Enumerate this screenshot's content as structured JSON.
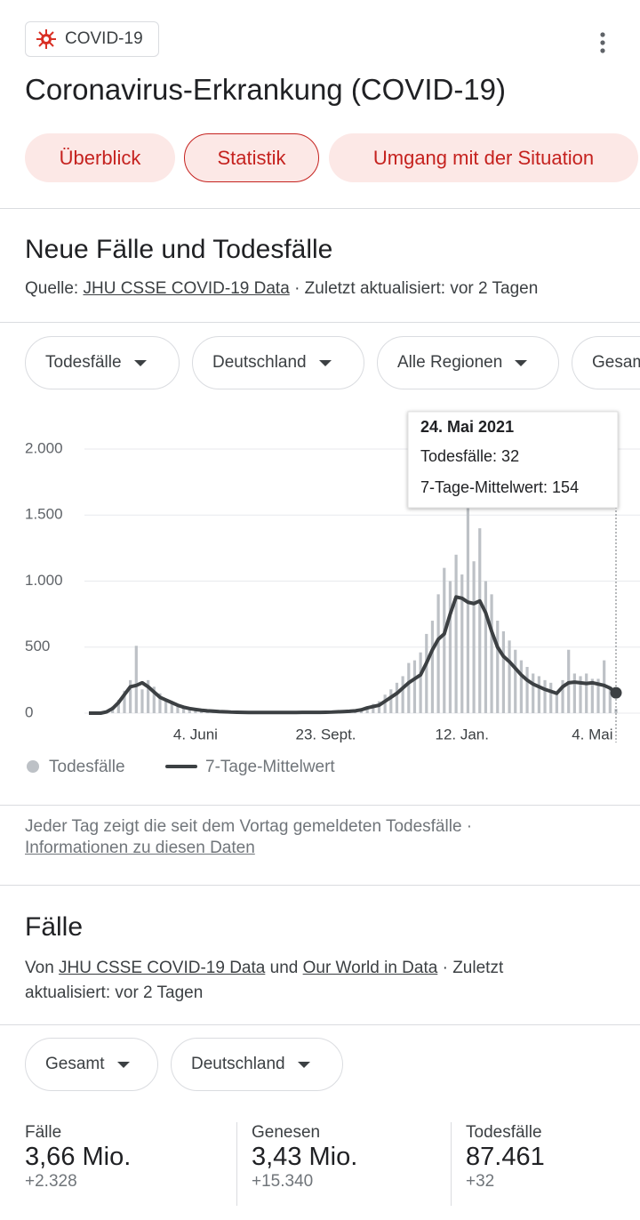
{
  "header": {
    "chip": "COVID-19",
    "title": "Coronavirus-Erkrankung (COVID-19)",
    "tabs": [
      "Überblick",
      "Statistik",
      "Umgang mit der Situation"
    ]
  },
  "section": {
    "title": "Neue Fälle und Todesfälle",
    "source_prefix": "Quelle:",
    "source_link": "JHU CSSE COVID-19 Data",
    "source_suffix": "· Zuletzt aktualisiert: vor 2 Tagen",
    "filters": [
      "Todesfälle",
      "Deutschland",
      "Alle Regionen",
      "Gesamt"
    ]
  },
  "chart_data": {
    "type": "bar",
    "categories": [
      null,
      null,
      null,
      null,
      null,
      null,
      null,
      null,
      null,
      null,
      null,
      null,
      null,
      null,
      null,
      null,
      null,
      null,
      "4. Juni",
      null,
      null,
      null,
      null,
      null,
      null,
      null,
      null,
      null,
      null,
      null,
      null,
      null,
      null,
      null,
      null,
      null,
      null,
      null,
      null,
      null,
      "23. Sept.",
      null,
      null,
      null,
      null,
      null,
      null,
      null,
      null,
      null,
      null,
      null,
      null,
      null,
      null,
      null,
      null,
      null,
      null,
      null,
      null,
      null,
      null,
      "12. Jan.",
      null,
      null,
      null,
      null,
      null,
      null,
      null,
      null,
      null,
      null,
      null,
      null,
      null,
      null,
      null,
      null,
      null,
      null,
      null,
      null,
      null,
      "4. Mai",
      null,
      null,
      null,
      null
    ],
    "series": [
      {
        "name": "Todesfälle",
        "type": "bar",
        "color": "#bdc1c6",
        "values": [
          0,
          0,
          2,
          20,
          50,
          100,
          170,
          250,
          510,
          180,
          250,
          200,
          150,
          100,
          80,
          60,
          40,
          35,
          25,
          20,
          15,
          12,
          10,
          8,
          6,
          5,
          5,
          6,
          5,
          4,
          5,
          6,
          4,
          5,
          6,
          5,
          6,
          8,
          5,
          7,
          8,
          10,
          12,
          14,
          15,
          20,
          30,
          40,
          70,
          90,
          140,
          180,
          230,
          280,
          380,
          400,
          460,
          600,
          700,
          900,
          1100,
          1000,
          1200,
          1050,
          1600,
          1150,
          1400,
          1000,
          900,
          700,
          620,
          550,
          480,
          400,
          350,
          300,
          280,
          250,
          230,
          150,
          250,
          480,
          300,
          280,
          300,
          260,
          260,
          400,
          200,
          32
        ]
      },
      {
        "name": "7-Tage-Mittelwert",
        "type": "line",
        "color": "#3c4043",
        "values": [
          0,
          0,
          0,
          10,
          35,
          80,
          140,
          200,
          210,
          230,
          200,
          160,
          120,
          100,
          80,
          60,
          45,
          35,
          28,
          22,
          18,
          15,
          12,
          10,
          8,
          7,
          6,
          5,
          5,
          5,
          5,
          5,
          5,
          5,
          5,
          5,
          6,
          6,
          6,
          6,
          7,
          8,
          10,
          12,
          14,
          18,
          25,
          40,
          50,
          60,
          90,
          120,
          150,
          190,
          230,
          260,
          290,
          380,
          480,
          560,
          600,
          750,
          880,
          870,
          840,
          830,
          850,
          760,
          620,
          500,
          430,
          390,
          340,
          290,
          250,
          220,
          200,
          180,
          165,
          150,
          200,
          230,
          235,
          230,
          225,
          230,
          220,
          210,
          190,
          154
        ]
      }
    ],
    "ylim": [
      0,
      2000
    ],
    "yticks": [
      0,
      500,
      {
        "value": 1000,
        "label": "1.000"
      },
      {
        "value": 1500,
        "label": "1.500"
      },
      {
        "value": 2000,
        "label": "2.000"
      }
    ],
    "grid": true,
    "tooltip": {
      "date": "24. Mai 2021",
      "lines": [
        "Todesfälle: 32",
        "7-Tage-Mittelwert: 154"
      ]
    }
  },
  "note": {
    "text": "Jeder Tag zeigt die seit dem Vortag gemeldeten Todesfälle ·",
    "link": "Informationen zu diesen Daten"
  },
  "cases": {
    "title": "Fälle",
    "source": {
      "prefix": "Von",
      "link1": "JHU CSSE COVID-19 Data",
      "mid": "und",
      "link2": "Our World in Data",
      "suffix": "· Zuletzt aktualisiert: vor 2 Tagen"
    },
    "filters": [
      "Gesamt",
      "Deutschland"
    ],
    "stats": [
      {
        "label": "Fälle",
        "value": "3,66 Mio.",
        "delta": "+2.328"
      },
      {
        "label": "Genesen",
        "value": "3,43 Mio.",
        "delta": "+15.340"
      },
      {
        "label": "Todesfälle",
        "value": "87.461",
        "delta": "+32"
      }
    ]
  }
}
